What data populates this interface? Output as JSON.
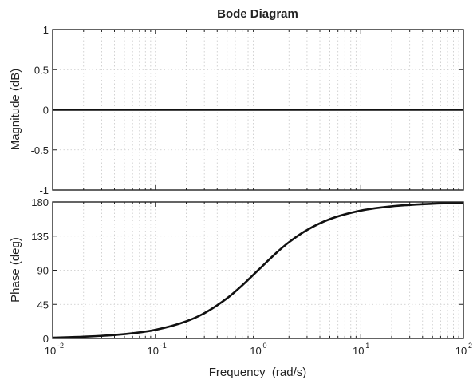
{
  "chart_data": {
    "type": "line",
    "title": "Bode Diagram",
    "xlabel": "Frequency  (rad/s)",
    "xscale": "log",
    "xlim": [
      0.01,
      100
    ],
    "x_ticks": [
      {
        "base": "10",
        "exp": "-2"
      },
      {
        "base": "10",
        "exp": "-1"
      },
      {
        "base": "10",
        "exp": "0"
      },
      {
        "base": "10",
        "exp": "1"
      },
      {
        "base": "10",
        "exp": "2"
      }
    ],
    "grid": true,
    "panels": [
      {
        "id": "magnitude",
        "ylabel": "Magnitude (dB)",
        "ylim": [
          -1,
          1
        ],
        "y_ticks": [
          "1",
          "0.5",
          "0",
          "-0.5",
          "-1"
        ],
        "series": [
          {
            "x": [
              0.01,
              0.1,
              1,
              10,
              100
            ],
            "y": [
              0,
              0,
              0,
              0,
              0
            ]
          }
        ]
      },
      {
        "id": "phase",
        "ylabel": "Phase (deg)",
        "ylim": [
          0,
          180
        ],
        "y_ticks": [
          "180",
          "135",
          "90",
          "45",
          "0"
        ],
        "series": [
          {
            "x": [
              0.01,
              0.02,
              0.05,
              0.1,
              0.2,
              0.3,
              0.5,
              0.7,
              1,
              1.5,
              2,
              3,
              5,
              10,
              20,
              50,
              100
            ],
            "y": [
              1.1,
              2.3,
              5.7,
              11.4,
              22.6,
              33.4,
              53.1,
              70.0,
              90.0,
              112.6,
              126.9,
              143.1,
              157.4,
              168.6,
              174.3,
              177.7,
              178.9
            ]
          }
        ]
      }
    ]
  }
}
